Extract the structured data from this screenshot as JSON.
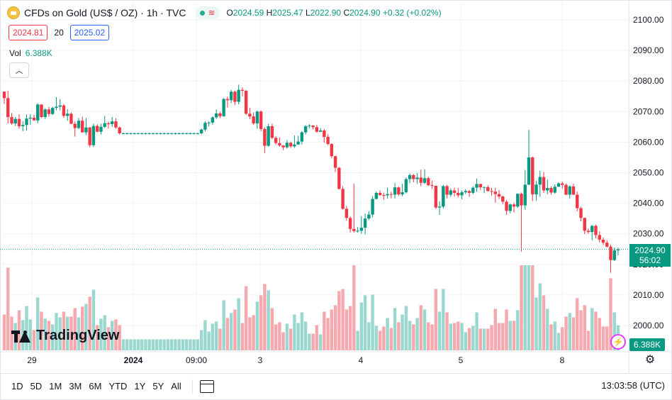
{
  "header": {
    "symbol_title": "CFDs on Gold (US$ / OZ) · 1h · TVC",
    "ohlc": {
      "open_label": "O",
      "open": "2024.59",
      "high_label": "H",
      "high": "2025.47",
      "low_label": "L",
      "low": "2022.90",
      "close_label": "C",
      "close": "2024.90",
      "change": "+0.32 (+0.02%)"
    },
    "bid": "2024.81",
    "spread": "20",
    "ask": "2025.02",
    "volume_label": "Vol",
    "volume_value": "6.388K",
    "logo_text": "TradingView"
  },
  "colors": {
    "up": "#089981",
    "down": "#f23645",
    "vol_up": "#9ad8cf",
    "vol_down": "#f5a8ae"
  },
  "price_label": {
    "price": "2024.90",
    "countdown": "56:02"
  },
  "volume_label": "6.388K",
  "bottom_bar": {
    "ranges": [
      "1D",
      "5D",
      "1M",
      "3M",
      "6M",
      "YTD",
      "1Y",
      "5Y",
      "All"
    ],
    "time": "13:03:58 (UTC)"
  },
  "icons": [
    "gold-coin-icon",
    "collapse-chevron-icon",
    "compare-calendar-icon",
    "settings-gear-icon",
    "lightning-icon"
  ],
  "chart_data": {
    "type": "candlestick",
    "y_axis": {
      "ticks": [
        2000,
        2010,
        2020,
        2030,
        2040,
        2050,
        2060,
        2070,
        2080,
        2090,
        2100
      ],
      "range": [
        1997,
        2104
      ]
    },
    "x_axis": {
      "tick_labels": [
        "29",
        "2024",
        "09:00",
        "3",
        "4",
        "5",
        "8"
      ]
    },
    "last_price": 2024.9,
    "candles": [
      [
        2076.5,
        2076.6,
        2072.5,
        2074.4
      ],
      [
        2074.4,
        2076.8,
        2066.1,
        2068.2
      ],
      [
        2068.2,
        2069.5,
        2065.7,
        2066.1
      ],
      [
        2066.1,
        2068.2,
        2065.3,
        2067.6
      ],
      [
        2067.6,
        2069.1,
        2064.4,
        2065.2
      ],
      [
        2065.2,
        2066.9,
        2063.6,
        2065.6
      ],
      [
        2065.6,
        2069.1,
        2063.8,
        2067.7
      ],
      [
        2067.7,
        2069.1,
        2065.7,
        2068.0
      ],
      [
        2068.0,
        2068.9,
        2067.0,
        2067.1
      ],
      [
        2067.1,
        2072.7,
        2066.2,
        2072.3
      ],
      [
        2072.3,
        2072.4,
        2067.9,
        2068.2
      ],
      [
        2068.2,
        2071.1,
        2067.6,
        2070.7
      ],
      [
        2070.7,
        2071.5,
        2068.3,
        2069.2
      ],
      [
        2069.2,
        2071.6,
        2068.9,
        2071.2
      ],
      [
        2071.2,
        2074.7,
        2070.4,
        2071.6
      ],
      [
        2071.6,
        2074.1,
        2070.4,
        2072.0
      ],
      [
        2072.0,
        2072.4,
        2067.9,
        2068.6
      ],
      [
        2068.6,
        2070.8,
        2067.0,
        2069.3
      ],
      [
        2069.3,
        2069.7,
        2065.9,
        2066.0
      ],
      [
        2066.0,
        2066.8,
        2061.8,
        2064.6
      ],
      [
        2064.6,
        2067.9,
        2064.2,
        2067.0
      ],
      [
        2067.0,
        2068.3,
        2063.1,
        2063.2
      ],
      [
        2063.2,
        2067.9,
        2062.3,
        2064.8
      ],
      [
        2064.8,
        2064.9,
        2058.3,
        2059.0
      ],
      [
        2059.0,
        2066.0,
        2058.4,
        2065.3
      ],
      [
        2065.3,
        2065.8,
        2063.2,
        2063.4
      ],
      [
        2063.4,
        2066.0,
        2062.5,
        2065.0
      ],
      [
        2065.0,
        2068.6,
        2064.6,
        2066.2
      ],
      [
        2066.2,
        2066.7,
        2064.4,
        2065.9
      ],
      [
        2065.9,
        2068.2,
        2065.0,
        2066.8
      ],
      [
        2066.8,
        2067.8,
        2064.4,
        2064.8
      ],
      [
        2064.8,
        2065.1,
        2062.5,
        2062.9
      ],
      [
        2062.9,
        2063.1,
        2062.5,
        2062.9
      ],
      [
        2062.9,
        2063.1,
        2062.5,
        2062.9
      ],
      [
        2062.9,
        2063.1,
        2062.5,
        2062.9
      ],
      [
        2062.9,
        2063.1,
        2062.5,
        2062.9
      ],
      [
        2062.9,
        2063.1,
        2062.5,
        2062.9
      ],
      [
        2062.9,
        2063.1,
        2062.5,
        2062.9
      ],
      [
        2062.9,
        2063.1,
        2062.5,
        2062.9
      ],
      [
        2062.9,
        2063.1,
        2062.5,
        2062.9
      ],
      [
        2062.9,
        2063.1,
        2062.5,
        2062.9
      ],
      [
        2062.9,
        2063.1,
        2062.5,
        2062.9
      ],
      [
        2062.9,
        2063.1,
        2062.5,
        2062.9
      ],
      [
        2062.9,
        2063.1,
        2062.5,
        2062.9
      ],
      [
        2062.9,
        2063.1,
        2062.5,
        2062.9
      ],
      [
        2062.9,
        2063.1,
        2062.5,
        2062.9
      ],
      [
        2062.9,
        2063.1,
        2062.5,
        2062.9
      ],
      [
        2062.9,
        2063.1,
        2062.5,
        2062.9
      ],
      [
        2062.9,
        2063.1,
        2062.5,
        2062.9
      ],
      [
        2062.9,
        2063.1,
        2062.5,
        2062.9
      ],
      [
        2062.9,
        2063.1,
        2062.5,
        2062.9
      ],
      [
        2062.9,
        2063.1,
        2062.5,
        2062.9
      ],
      [
        2062.9,
        2063.1,
        2062.5,
        2062.9
      ],
      [
        2062.9,
        2064.4,
        2062.5,
        2064.1
      ],
      [
        2064.1,
        2066.8,
        2063.5,
        2066.3
      ],
      [
        2066.3,
        2066.8,
        2065.1,
        2066.4
      ],
      [
        2066.4,
        2068.5,
        2065.7,
        2068.1
      ],
      [
        2068.1,
        2070.7,
        2067.6,
        2069.4
      ],
      [
        2069.4,
        2070.0,
        2067.9,
        2068.5
      ],
      [
        2068.5,
        2074.4,
        2068.3,
        2074.1
      ],
      [
        2074.1,
        2074.9,
        2071.3,
        2073.7
      ],
      [
        2073.7,
        2077.1,
        2072.8,
        2076.5
      ],
      [
        2076.5,
        2076.9,
        2072.1,
        2073.2
      ],
      [
        2073.2,
        2078.8,
        2072.4,
        2077.1
      ],
      [
        2077.1,
        2077.9,
        2075.0,
        2076.8
      ],
      [
        2076.8,
        2077.0,
        2068.9,
        2069.3
      ],
      [
        2069.3,
        2071.2,
        2067.5,
        2068.4
      ],
      [
        2068.4,
        2069.7,
        2065.7,
        2066.1
      ],
      [
        2066.1,
        2070.3,
        2064.4,
        2070.0
      ],
      [
        2070.0,
        2070.4,
        2063.6,
        2064.3
      ],
      [
        2064.3,
        2064.8,
        2056.4,
        2058.8
      ],
      [
        2058.8,
        2066.0,
        2058.5,
        2065.2
      ],
      [
        2065.2,
        2066.0,
        2061.0,
        2061.4
      ],
      [
        2061.4,
        2061.9,
        2059.2,
        2059.7
      ],
      [
        2059.7,
        2061.5,
        2058.5,
        2058.9
      ],
      [
        2058.9,
        2059.0,
        2057.4,
        2058.3
      ],
      [
        2058.3,
        2060.7,
        2057.9,
        2059.8
      ],
      [
        2059.8,
        2060.2,
        2058.1,
        2058.6
      ],
      [
        2058.6,
        2062.2,
        2058.1,
        2059.2
      ],
      [
        2059.2,
        2062.1,
        2059.2,
        2060.2
      ],
      [
        2060.2,
        2063.6,
        2059.2,
        2063.2
      ],
      [
        2063.2,
        2065.6,
        2062.5,
        2065.2
      ],
      [
        2065.2,
        2065.9,
        2064.5,
        2065.4
      ],
      [
        2065.4,
        2065.6,
        2064.2,
        2064.9
      ],
      [
        2064.9,
        2065.7,
        2063.1,
        2063.4
      ],
      [
        2063.4,
        2064.6,
        2063.3,
        2063.8
      ],
      [
        2063.8,
        2064.3,
        2059.8,
        2061.7
      ],
      [
        2061.7,
        2062.6,
        2059.0,
        2059.4
      ],
      [
        2059.4,
        2059.6,
        2054.8,
        2055.4
      ],
      [
        2055.4,
        2055.6,
        2050.2,
        2051.6
      ],
      [
        2051.6,
        2051.9,
        2044.5,
        2044.7
      ],
      [
        2044.7,
        2045.6,
        2037.9,
        2038.2
      ],
      [
        2038.2,
        2039.1,
        2034.3,
        2035.2
      ],
      [
        2035.2,
        2035.7,
        2030.4,
        2031.6
      ],
      [
        2031.6,
        2046.4,
        2030.4,
        2030.9
      ],
      [
        2030.9,
        2032.2,
        2030.4,
        2031.0
      ],
      [
        2031.0,
        2035.8,
        2030.0,
        2032.0
      ],
      [
        2032.0,
        2036.6,
        2029.8,
        2035.0
      ],
      [
        2035.0,
        2037.5,
        2034.5,
        2036.3
      ],
      [
        2036.3,
        2042.3,
        2035.4,
        2041.4
      ],
      [
        2041.4,
        2043.8,
        2041.3,
        2043.4
      ],
      [
        2043.4,
        2044.2,
        2042.4,
        2042.7
      ],
      [
        2042.7,
        2043.5,
        2041.1,
        2042.6
      ],
      [
        2042.6,
        2045.1,
        2041.5,
        2043.0
      ],
      [
        2043.0,
        2043.8,
        2041.6,
        2042.8
      ],
      [
        2042.8,
        2046.6,
        2041.6,
        2045.2
      ],
      [
        2045.2,
        2045.4,
        2042.4,
        2042.9
      ],
      [
        2042.9,
        2046.4,
        2042.3,
        2043.6
      ],
      [
        2043.6,
        2048.5,
        2043.2,
        2047.9
      ],
      [
        2047.9,
        2049.8,
        2046.6,
        2049.2
      ],
      [
        2049.2,
        2049.6,
        2046.9,
        2047.9
      ],
      [
        2047.9,
        2049.9,
        2046.3,
        2048.4
      ],
      [
        2048.4,
        2051.0,
        2045.6,
        2046.7
      ],
      [
        2046.7,
        2051.1,
        2046.3,
        2048.2
      ],
      [
        2048.2,
        2048.7,
        2045.7,
        2045.9
      ],
      [
        2045.9,
        2047.4,
        2044.7,
        2045.7
      ],
      [
        2045.7,
        2045.8,
        2038.1,
        2038.6
      ],
      [
        2038.6,
        2040.7,
        2036.2,
        2038.9
      ],
      [
        2038.9,
        2046.0,
        2038.3,
        2045.6
      ],
      [
        2045.6,
        2046.0,
        2041.6,
        2042.8
      ],
      [
        2042.8,
        2044.9,
        2042.1,
        2044.2
      ],
      [
        2044.2,
        2045.1,
        2042.2,
        2043.4
      ],
      [
        2043.4,
        2045.0,
        2041.9,
        2042.6
      ],
      [
        2042.6,
        2044.2,
        2041.3,
        2043.6
      ],
      [
        2043.6,
        2044.6,
        2043.0,
        2044.0
      ],
      [
        2044.0,
        2044.3,
        2042.1,
        2043.4
      ],
      [
        2043.4,
        2045.5,
        2043.0,
        2045.1
      ],
      [
        2045.1,
        2048.1,
        2043.7,
        2046.3
      ],
      [
        2046.3,
        2046.4,
        2044.3,
        2045.2
      ],
      [
        2045.2,
        2045.4,
        2043.3,
        2045.3
      ],
      [
        2045.3,
        2045.9,
        2043.8,
        2044.0
      ],
      [
        2044.0,
        2045.0,
        2042.4,
        2043.8
      ],
      [
        2043.8,
        2045.1,
        2040.2,
        2043.0
      ],
      [
        2043.0,
        2044.3,
        2041.4,
        2042.2
      ],
      [
        2042.2,
        2042.5,
        2039.6,
        2040.5
      ],
      [
        2040.5,
        2041.0,
        2036.2,
        2037.5
      ],
      [
        2037.5,
        2039.9,
        2036.7,
        2039.6
      ],
      [
        2039.6,
        2040.2,
        2037.0,
        2038.9
      ],
      [
        2038.9,
        2043.2,
        2038.5,
        2043.1
      ],
      [
        2043.1,
        2043.5,
        2024.2,
        2039.3
      ],
      [
        2039.3,
        2050.9,
        2037.9,
        2046.1
      ],
      [
        2046.1,
        2064.0,
        2045.9,
        2055.0
      ],
      [
        2055.0,
        2055.3,
        2040.7,
        2042.9
      ],
      [
        2042.9,
        2047.3,
        2040.8,
        2046.1
      ],
      [
        2046.1,
        2050.6,
        2042.1,
        2048.6
      ],
      [
        2048.6,
        2050.2,
        2043.4,
        2044.2
      ],
      [
        2044.2,
        2047.8,
        2042.9,
        2045.0
      ],
      [
        2045.0,
        2045.5,
        2042.8,
        2043.5
      ],
      [
        2043.5,
        2046.2,
        2043.1,
        2045.4
      ],
      [
        2045.4,
        2046.9,
        2045.4,
        2046.5
      ],
      [
        2046.5,
        2047.1,
        2044.8,
        2046.0
      ],
      [
        2046.0,
        2046.5,
        2042.7,
        2042.8
      ],
      [
        2042.8,
        2045.9,
        2041.6,
        2045.5
      ],
      [
        2045.5,
        2046.4,
        2042.7,
        2042.8
      ],
      [
        2042.8,
        2043.8,
        2037.4,
        2038.4
      ],
      [
        2038.4,
        2038.8,
        2034.1,
        2035.2
      ],
      [
        2035.2,
        2035.3,
        2029.9,
        2031.0
      ],
      [
        2031.0,
        2031.8,
        2030.0,
        2030.6
      ],
      [
        2030.6,
        2032.9,
        2027.9,
        2032.6
      ],
      [
        2032.6,
        2033.0,
        2028.5,
        2029.6
      ],
      [
        2029.6,
        2030.8,
        2027.2,
        2028.1
      ],
      [
        2028.1,
        2028.8,
        2026.4,
        2027.1
      ],
      [
        2027.1,
        2027.9,
        2025.5,
        2025.8
      ],
      [
        2025.8,
        2026.5,
        2017.3,
        2021.4
      ],
      [
        2021.4,
        2025.5,
        2021.1,
        2024.6
      ],
      [
        2024.59,
        2025.47,
        2022.9,
        2024.9
      ]
    ],
    "volume_max": 500
  }
}
